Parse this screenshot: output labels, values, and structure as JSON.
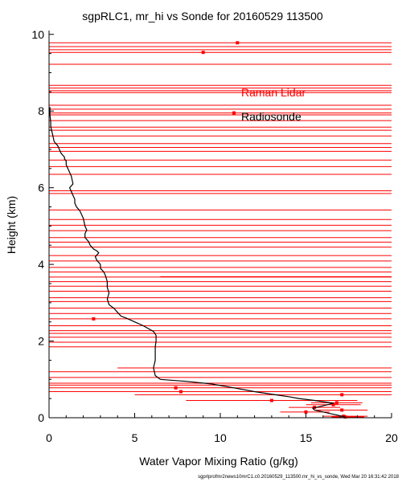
{
  "chart_data": {
    "type": "scatter",
    "title": "sgpRLC1, mr_hi vs Sonde for 20160529 113500",
    "xlabel": "Water Vapor Mixing Ratio (g/kg)",
    "ylabel": "Height (km)",
    "xlim": [
      0,
      20
    ],
    "ylim": [
      0,
      10.1
    ],
    "xticks": [
      0,
      5,
      10,
      15,
      20
    ],
    "yticks": [
      0,
      2,
      4,
      6,
      8,
      10
    ],
    "grid": false,
    "legend": {
      "placement": "center-right",
      "entries": [
        "Raman Lidar",
        "Radiosonde"
      ]
    },
    "footer": "sgprlprofmr2news10mrC1.c0.20160529_113500.mr_hi_vs_sonde, Wed Mar 20 16:31:42 2018",
    "colors": {
      "lidar": "#ff0000",
      "sonde": "#000000"
    },
    "series": [
      {
        "name": "Raman Lidar",
        "style": "points with horizontal error bars",
        "points": [
          {
            "x": 17.3,
            "y": 0.02,
            "xerr_lo": 16.5,
            "xerr_hi": 18.4
          },
          {
            "x": 17.2,
            "y": 0.04,
            "xerr_lo": 16.0,
            "xerr_hi": 18.6
          },
          {
            "x": 15.0,
            "y": 0.15,
            "xerr_lo": 13.5,
            "xerr_hi": 16.4
          },
          {
            "x": 17.1,
            "y": 0.2,
            "xerr_lo": 15.6,
            "xerr_hi": 18.6
          },
          {
            "x": 15.5,
            "y": 0.27,
            "xerr_lo": 14.0,
            "xerr_hi": 17.0
          },
          {
            "x": 16.6,
            "y": 0.34,
            "xerr_lo": 15.0,
            "xerr_hi": 18.2
          },
          {
            "x": 16.8,
            "y": 0.39,
            "xerr_lo": 15.3,
            "xerr_hi": 18.3
          },
          {
            "x": 13.0,
            "y": 0.45,
            "xerr_lo": 8.0,
            "xerr_hi": 18.0
          },
          {
            "x": 17.1,
            "y": 0.6,
            "xerr_lo": 5.0,
            "xerr_hi": 20.0
          },
          {
            "x": 7.7,
            "y": 0.68,
            "xerr_lo": 0,
            "xerr_hi": 20.0
          },
          {
            "x": 7.4,
            "y": 0.78,
            "xerr_lo": 0,
            "xerr_hi": 20.0
          },
          {
            "x": 2.6,
            "y": 2.58,
            "xerr_lo": 0,
            "xerr_hi": 20.0
          },
          {
            "x": 10.8,
            "y": 7.95,
            "xerr_lo": 0,
            "xerr_hi": 20.0
          },
          {
            "x": 9.0,
            "y": 9.53,
            "xerr_lo": 0,
            "xerr_hi": 20.0
          },
          {
            "x": 11.0,
            "y": 9.78,
            "xerr_lo": 0,
            "xerr_hi": 20.0
          }
        ],
        "full_width_bar_heights": [
          0.85,
          0.9,
          1.05,
          1.2,
          1.85,
          1.97,
          2.1,
          2.2,
          2.27,
          2.4,
          2.72,
          2.86,
          3.03,
          3.13,
          3.3,
          3.43,
          3.55,
          3.67,
          3.8,
          3.92,
          4.09,
          4.23,
          4.45,
          4.58,
          4.7,
          4.88,
          5.02,
          5.17,
          5.42,
          5.85,
          5.92,
          6.35,
          6.55,
          6.72,
          6.95,
          7.05,
          7.15,
          7.35,
          7.5,
          7.58,
          7.75,
          7.9,
          8.05,
          8.15,
          8.48,
          8.53,
          8.6,
          8.67,
          9.22,
          9.6,
          9.68
        ],
        "partial_bars": [
          {
            "y": 1.3,
            "x_lo": 4.0,
            "x_hi": 20.0
          },
          {
            "y": 3.68,
            "x_lo": 6.5,
            "x_hi": 20.0
          }
        ]
      },
      {
        "name": "Radiosonde",
        "style": "line",
        "x": [
          17.3,
          17.0,
          16.5,
          16.0,
          15.5,
          15.4,
          15.9,
          16.6,
          15.5,
          14.6,
          14.0,
          13.2,
          12.0,
          10.8,
          9.5,
          8.0,
          6.5,
          6.2,
          6.1,
          6.2,
          6.2,
          6.2,
          6.25,
          6.25,
          6.1,
          5.5,
          5.0,
          4.5,
          4.2,
          4.0,
          3.8,
          3.5,
          3.4,
          3.5,
          3.4,
          3.4,
          3.3,
          3.2,
          3.1,
          3.0,
          3.0,
          2.8,
          2.7,
          2.9,
          2.8,
          2.6,
          2.4,
          2.3,
          2.1,
          2.1,
          2.2,
          2.1,
          2.0,
          1.8,
          1.6,
          1.5,
          1.5,
          1.4,
          1.3,
          1.2,
          1.4,
          1.3,
          1.1,
          1.0,
          1.0,
          0.9,
          0.9,
          0.8,
          0.7,
          0.6,
          0.5,
          0.3,
          0.25,
          0.2,
          0.15,
          0.1,
          0.1,
          0.05,
          0.05
        ],
        "y": [
          0.02,
          0.05,
          0.1,
          0.15,
          0.2,
          0.25,
          0.3,
          0.38,
          0.45,
          0.5,
          0.55,
          0.6,
          0.68,
          0.78,
          0.88,
          0.95,
          1.0,
          1.1,
          1.3,
          1.5,
          1.7,
          1.85,
          2.0,
          2.15,
          2.25,
          2.4,
          2.5,
          2.6,
          2.65,
          2.75,
          2.85,
          2.95,
          3.1,
          3.25,
          3.4,
          3.55,
          3.7,
          3.8,
          3.85,
          3.9,
          4.0,
          4.1,
          4.2,
          4.3,
          4.35,
          4.4,
          4.5,
          4.6,
          4.7,
          4.8,
          4.9,
          5.0,
          5.2,
          5.4,
          5.5,
          5.6,
          5.7,
          5.8,
          5.9,
          6.0,
          6.1,
          6.3,
          6.5,
          6.6,
          6.7,
          6.75,
          6.8,
          6.85,
          6.9,
          7.0,
          7.1,
          7.2,
          7.3,
          7.4,
          7.5,
          7.6,
          7.7,
          7.9,
          8.1
        ]
      }
    ]
  }
}
